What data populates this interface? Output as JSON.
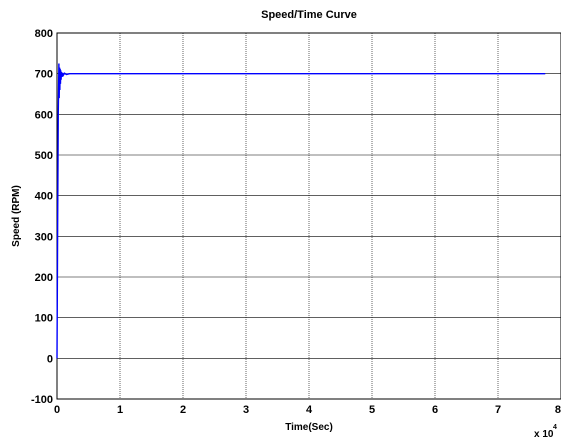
{
  "chart_data": {
    "type": "line",
    "title": "Speed/Time Curve",
    "xlabel": "Time(Sec)",
    "ylabel": "Speed (RPM)",
    "x_scale_label": "x 10",
    "x_scale_exponent": "4",
    "xlim": [
      0,
      8
    ],
    "ylim": [
      -100,
      800
    ],
    "x_ticks": [
      0,
      1,
      2,
      3,
      4,
      5,
      6,
      7,
      8
    ],
    "y_ticks": [
      -100,
      0,
      100,
      200,
      300,
      400,
      500,
      600,
      700,
      800
    ],
    "grid": true,
    "line_color": "#0000ff",
    "series": [
      {
        "x": [
          0,
          0.01,
          0.02,
          0.03,
          0.035,
          0.04,
          0.045,
          0.05,
          0.055,
          0.06,
          0.065,
          0.07,
          0.08,
          0.09,
          0.1,
          0.12,
          0.15,
          0.2,
          0.3,
          0.5,
          1,
          2,
          3,
          4,
          5,
          6,
          7,
          7.75
        ],
        "y": [
          0,
          320,
          600,
          725,
          640,
          715,
          660,
          712,
          675,
          708,
          685,
          704,
          692,
          702,
          696,
          701,
          698,
          700,
          700,
          700,
          700,
          700,
          700,
          700,
          700,
          700,
          700,
          700
        ]
      }
    ]
  }
}
